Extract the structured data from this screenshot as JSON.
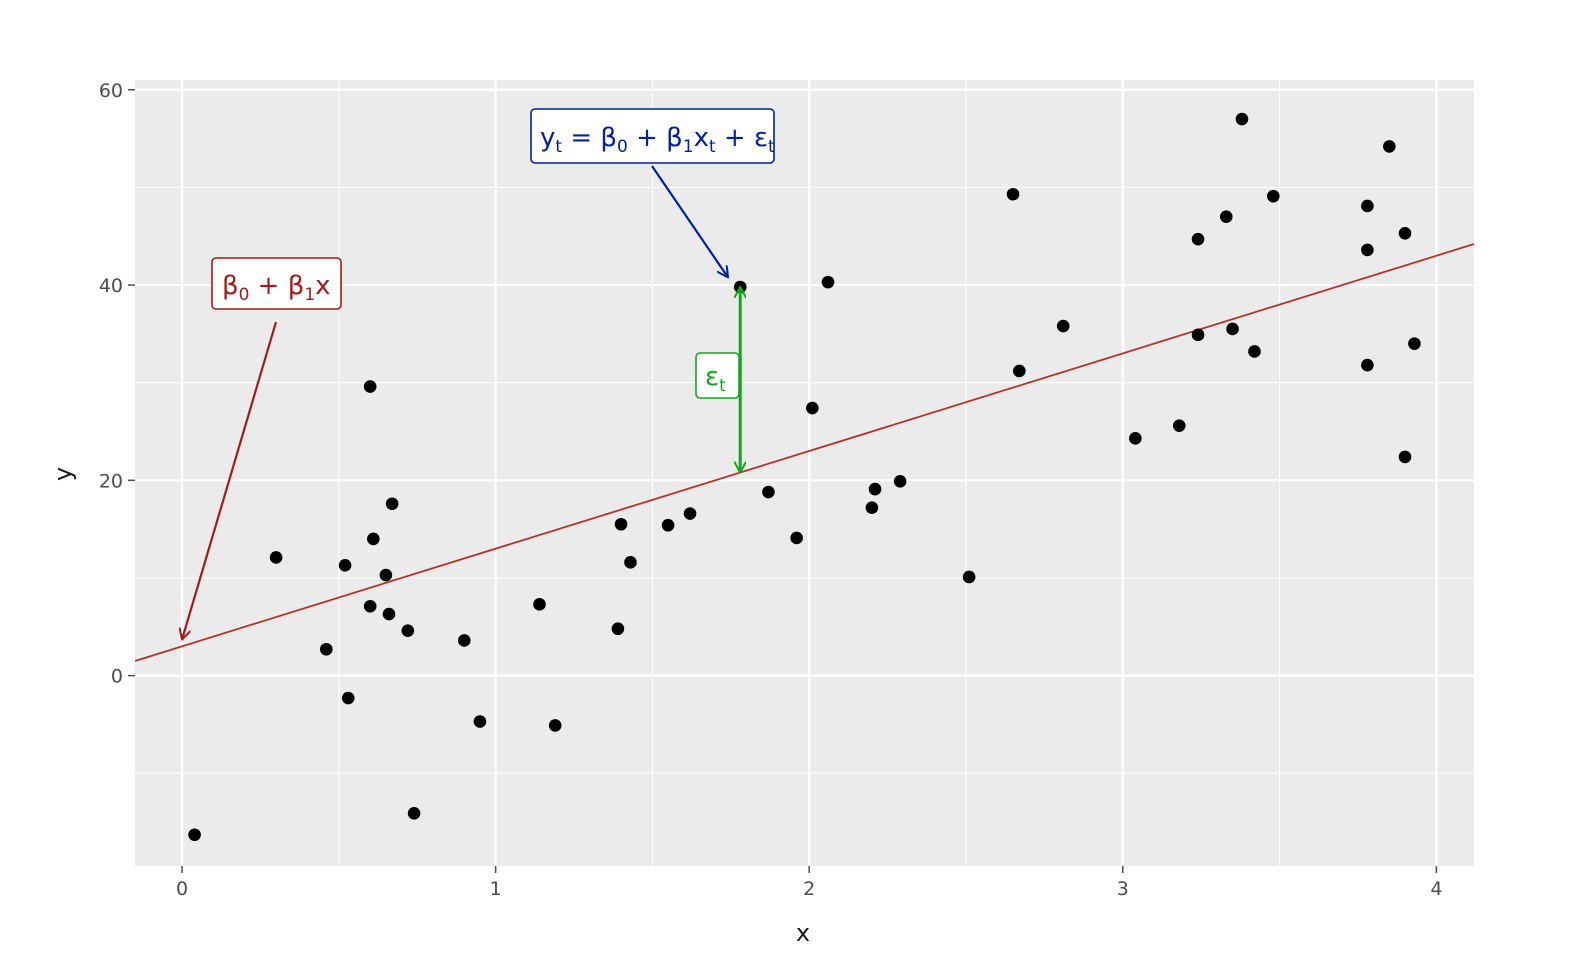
{
  "chart_data": {
    "type": "scatter",
    "xlabel": "x",
    "ylabel": "y",
    "xlim": [
      -0.15,
      4.12
    ],
    "ylim": [
      -19.5,
      61
    ],
    "x_ticks": [
      0,
      1,
      2,
      3,
      4
    ],
    "y_ticks": [
      0,
      20,
      40,
      60
    ],
    "grid": true,
    "points": [
      {
        "x": 0.04,
        "y": -16.3
      },
      {
        "x": 0.3,
        "y": 12.1
      },
      {
        "x": 0.46,
        "y": 2.7
      },
      {
        "x": 0.52,
        "y": 11.3
      },
      {
        "x": 0.53,
        "y": -2.3
      },
      {
        "x": 0.6,
        "y": 29.6
      },
      {
        "x": 0.6,
        "y": 7.1
      },
      {
        "x": 0.61,
        "y": 14.0
      },
      {
        "x": 0.65,
        "y": 10.3
      },
      {
        "x": 0.66,
        "y": 6.3
      },
      {
        "x": 0.67,
        "y": 17.6
      },
      {
        "x": 0.72,
        "y": 4.6
      },
      {
        "x": 0.74,
        "y": -14.1
      },
      {
        "x": 0.9,
        "y": 3.6
      },
      {
        "x": 0.95,
        "y": -4.7
      },
      {
        "x": 1.14,
        "y": 7.3
      },
      {
        "x": 1.19,
        "y": -5.1
      },
      {
        "x": 1.39,
        "y": 4.8
      },
      {
        "x": 1.4,
        "y": 15.5
      },
      {
        "x": 1.43,
        "y": 11.6
      },
      {
        "x": 1.55,
        "y": 15.4
      },
      {
        "x": 1.62,
        "y": 16.6
      },
      {
        "x": 1.78,
        "y": 39.8
      },
      {
        "x": 1.87,
        "y": 18.8
      },
      {
        "x": 1.96,
        "y": 14.1
      },
      {
        "x": 2.01,
        "y": 27.4
      },
      {
        "x": 2.06,
        "y": 40.3
      },
      {
        "x": 2.2,
        "y": 17.2
      },
      {
        "x": 2.21,
        "y": 19.1
      },
      {
        "x": 2.29,
        "y": 19.9
      },
      {
        "x": 2.51,
        "y": 10.1
      },
      {
        "x": 2.65,
        "y": 49.3
      },
      {
        "x": 2.67,
        "y": 31.2
      },
      {
        "x": 2.81,
        "y": 35.8
      },
      {
        "x": 3.04,
        "y": 24.3
      },
      {
        "x": 3.18,
        "y": 25.6
      },
      {
        "x": 3.24,
        "y": 44.7
      },
      {
        "x": 3.24,
        "y": 34.9
      },
      {
        "x": 3.33,
        "y": 47.0
      },
      {
        "x": 3.35,
        "y": 35.5
      },
      {
        "x": 3.38,
        "y": 57.0
      },
      {
        "x": 3.42,
        "y": 33.2
      },
      {
        "x": 3.48,
        "y": 49.1
      },
      {
        "x": 3.78,
        "y": 48.1
      },
      {
        "x": 3.78,
        "y": 43.6
      },
      {
        "x": 3.78,
        "y": 31.8
      },
      {
        "x": 3.85,
        "y": 54.2
      },
      {
        "x": 3.9,
        "y": 45.3
      },
      {
        "x": 3.9,
        "y": 22.4
      },
      {
        "x": 3.93,
        "y": 34.0
      }
    ],
    "regression_line": {
      "intercept": 3.0,
      "slope": 10.0,
      "color": "#b2342b"
    },
    "annotations": {
      "line_label": {
        "beta": "β",
        "sub0": "0",
        "plus": " + ",
        "sub1": "1",
        "var": "x",
        "color": "#a11b1b",
        "target_x": 0.0,
        "target_y": 3.7
      },
      "equation_label": {
        "y": "y",
        "t": "t",
        "eq": " = ",
        "beta": "β",
        "sub0": "0",
        "plus1": " + ",
        "sub1": "1",
        "x": "x",
        "plus2": " + ",
        "eps": "ε",
        "color": "#00209f",
        "target_x": 1.76,
        "target_y": 41.0
      },
      "error_label": {
        "eps": "ε",
        "t": "t",
        "color": "#13a51b",
        "x": 1.78,
        "y_from": 20.8,
        "y_to": 39.8
      }
    }
  }
}
